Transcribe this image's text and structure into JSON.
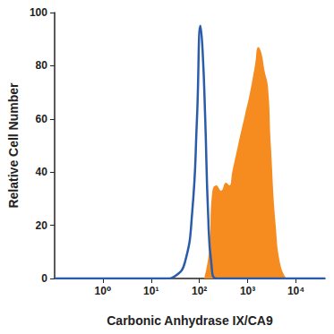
{
  "chart_data": {
    "type": "line",
    "x_label": "Carbonic Anhydrase IX/CA9",
    "y_label": "Relative Cell Number",
    "log": "x",
    "grid": false,
    "xlim": [
      0.1,
      40000
    ],
    "xticks": [
      {
        "value": 1,
        "label": "10⁰"
      },
      {
        "value": 10,
        "label": "10¹"
      },
      {
        "value": 100,
        "label": "10²"
      },
      {
        "value": 1000,
        "label": "10³"
      },
      {
        "value": 10000,
        "label": "10⁴"
      }
    ],
    "ylim": [
      0,
      100
    ],
    "yticks": [
      0,
      20,
      40,
      60,
      80,
      100
    ],
    "series": [
      {
        "type": "area",
        "color": "#f68b1f",
        "marker": "none",
        "x": [
          126,
          158,
          186,
          224,
          282,
          355,
          417,
          479,
          631,
          891,
          1122,
          1413,
          1660,
          1905,
          2239,
          2630,
          3020,
          3802,
          4786,
          6310
        ],
        "values": [
          0,
          10,
          33,
          35,
          33,
          36,
          35,
          40,
          50,
          62,
          70,
          80,
          87,
          85,
          78,
          72,
          50,
          20,
          5,
          0
        ]
      },
      {
        "type": "line",
        "color": "#2a5caa",
        "marker": "none",
        "x": [
          0.1,
          20,
          32,
          50,
          71,
          89,
          105,
          117,
          132,
          151,
          178,
          224,
          40000
        ],
        "values": [
          0,
          0,
          1,
          6,
          25,
          60,
          95,
          85,
          60,
          25,
          5,
          0,
          0
        ]
      }
    ]
  }
}
